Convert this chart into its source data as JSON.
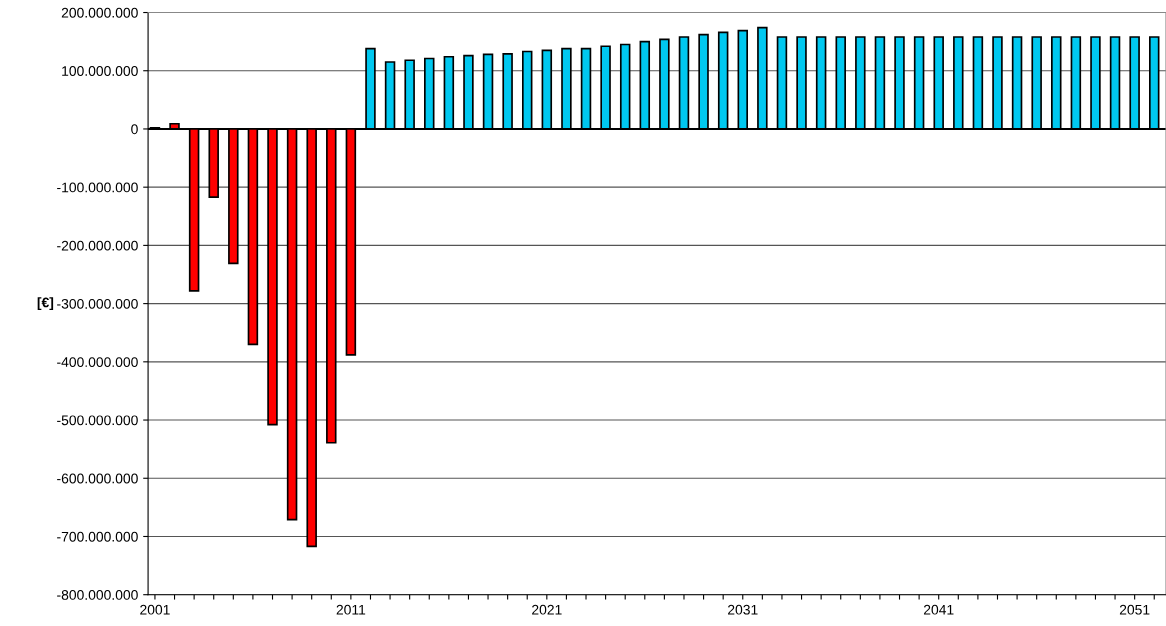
{
  "chart_data": {
    "type": "bar",
    "ylabel": "[€]",
    "x": [
      2001,
      2002,
      2003,
      2004,
      2005,
      2006,
      2007,
      2008,
      2009,
      2010,
      2011,
      2012,
      2013,
      2014,
      2015,
      2016,
      2017,
      2018,
      2019,
      2020,
      2021,
      2022,
      2023,
      2024,
      2025,
      2026,
      2027,
      2028,
      2029,
      2030,
      2031,
      2032,
      2033,
      2034,
      2035,
      2036,
      2037,
      2038,
      2039,
      2040,
      2041,
      2042,
      2043,
      2044,
      2045,
      2046,
      2047,
      2048,
      2049,
      2050,
      2051,
      2052
    ],
    "values": [
      2000000,
      9000000,
      -278000000,
      -117000000,
      -231000000,
      -370000000,
      -508000000,
      -671000000,
      -717000000,
      -539000000,
      -388000000,
      138000000,
      115000000,
      118000000,
      121000000,
      124000000,
      126000000,
      128000000,
      129000000,
      133000000,
      135000000,
      138000000,
      138000000,
      142000000,
      145000000,
      150000000,
      154000000,
      158000000,
      162000000,
      166000000,
      169000000,
      174000000,
      158000000,
      158000000,
      158000000,
      158000000,
      158000000,
      158000000,
      158000000,
      158000000,
      158000000,
      158000000,
      158000000,
      158000000,
      158000000,
      158000000,
      158000000,
      158000000,
      158000000,
      158000000,
      158000000,
      158000000
    ],
    "colors": [
      "#ff0000",
      "#ff0000",
      "#ff0000",
      "#ff0000",
      "#ff0000",
      "#ff0000",
      "#ff0000",
      "#ff0000",
      "#ff0000",
      "#ff0000",
      "#ff0000",
      "#00c8f0",
      "#00c8f0",
      "#00c8f0",
      "#00c8f0",
      "#00c8f0",
      "#00c8f0",
      "#00c8f0",
      "#00c8f0",
      "#00c8f0",
      "#00c8f0",
      "#00c8f0",
      "#00c8f0",
      "#00c8f0",
      "#00c8f0",
      "#00c8f0",
      "#00c8f0",
      "#00c8f0",
      "#00c8f0",
      "#00c8f0",
      "#00c8f0",
      "#00c8f0",
      "#00c8f0",
      "#00c8f0",
      "#00c8f0",
      "#00c8f0",
      "#00c8f0",
      "#00c8f0",
      "#00c8f0",
      "#00c8f0",
      "#00c8f0",
      "#00c8f0",
      "#00c8f0",
      "#00c8f0",
      "#00c8f0",
      "#00c8f0",
      "#00c8f0",
      "#00c8f0",
      "#00c8f0",
      "#00c8f0",
      "#00c8f0",
      "#00c8f0"
    ],
    "xlim": [
      2000.65,
      2052.6
    ],
    "xticks": [
      2001,
      {
        "value": 2002,
        "label": null
      },
      {
        "value": 2003,
        "label": null
      },
      {
        "value": 2004,
        "label": null
      },
      {
        "value": 2005,
        "label": null
      },
      {
        "value": 2006,
        "label": null
      },
      {
        "value": 2007,
        "label": null
      },
      {
        "value": 2008,
        "label": null
      },
      {
        "value": 2009,
        "label": null
      },
      {
        "value": 2010,
        "label": null
      },
      2011,
      {
        "value": 2012,
        "label": null
      },
      {
        "value": 2013,
        "label": null
      },
      {
        "value": 2014,
        "label": null
      },
      {
        "value": 2015,
        "label": null
      },
      {
        "value": 2016,
        "label": null
      },
      {
        "value": 2017,
        "label": null
      },
      {
        "value": 2018,
        "label": null
      },
      {
        "value": 2019,
        "label": null
      },
      {
        "value": 2020,
        "label": null
      },
      2021,
      {
        "value": 2022,
        "label": null
      },
      {
        "value": 2023,
        "label": null
      },
      {
        "value": 2024,
        "label": null
      },
      {
        "value": 2025,
        "label": null
      },
      {
        "value": 2026,
        "label": null
      },
      {
        "value": 2027,
        "label": null
      },
      {
        "value": 2028,
        "label": null
      },
      {
        "value": 2029,
        "label": null
      },
      {
        "value": 2030,
        "label": null
      },
      2031,
      {
        "value": 2032,
        "label": null
      },
      {
        "value": 2033,
        "label": null
      },
      {
        "value": 2034,
        "label": null
      },
      {
        "value": 2035,
        "label": null
      },
      {
        "value": 2036,
        "label": null
      },
      {
        "value": 2037,
        "label": null
      },
      {
        "value": 2038,
        "label": null
      },
      {
        "value": 2039,
        "label": null
      },
      {
        "value": 2040,
        "label": null
      },
      2041,
      {
        "value": 2042,
        "label": null
      },
      {
        "value": 2043,
        "label": null
      },
      {
        "value": 2044,
        "label": null
      },
      {
        "value": 2045,
        "label": null
      },
      {
        "value": 2046,
        "label": null
      },
      {
        "value": 2047,
        "label": null
      },
      {
        "value": 2048,
        "label": null
      },
      {
        "value": 2049,
        "label": null
      },
      {
        "value": 2050,
        "label": null
      },
      2051,
      {
        "value": 2052,
        "label": null
      }
    ],
    "ylim": [
      -800000000,
      200000000
    ],
    "yticks": [
      {
        "value": 200000000,
        "label": "200.000.000"
      },
      {
        "value": 100000000,
        "label": "100.000.000"
      },
      0,
      {
        "value": -100000000,
        "label": "-100.000.000"
      },
      {
        "value": -200000000,
        "label": "-200.000.000"
      },
      {
        "value": -300000000,
        "label": "-300.000.000"
      },
      {
        "value": -400000000,
        "label": "-400.000.000"
      },
      {
        "value": -500000000,
        "label": "-500.000.000"
      },
      {
        "value": -600000000,
        "label": "-600.000.000"
      },
      {
        "value": -700000000,
        "label": "-700.000.000"
      },
      {
        "value": -800000000,
        "label": "-800.000.000"
      }
    ],
    "grid": "y"
  }
}
